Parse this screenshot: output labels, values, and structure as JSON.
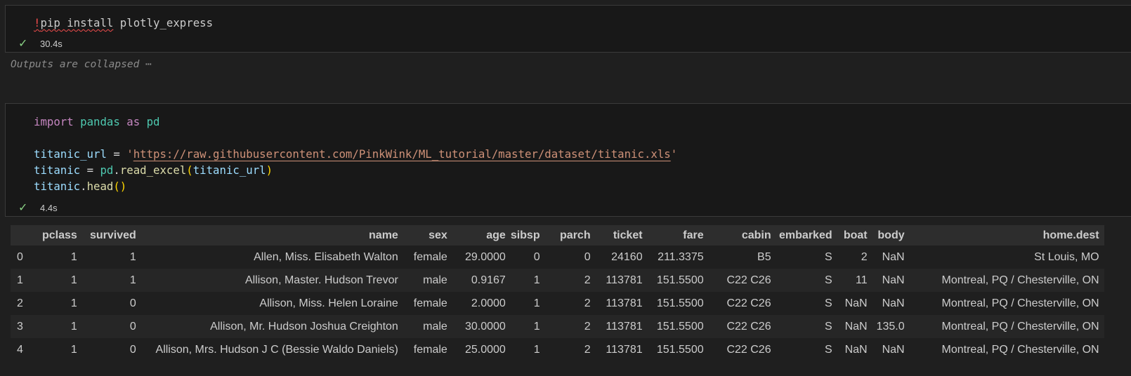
{
  "cell1": {
    "code": [
      [
        {
          "t": "!",
          "c": "#f14c4c",
          "sq": true
        },
        {
          "t": "pip install",
          "c": "#cccccc",
          "sq": true
        },
        {
          "t": " plotly_express",
          "c": "#cccccc"
        }
      ]
    ],
    "status": {
      "icon": "check-icon",
      "duration": "30.4s"
    }
  },
  "collapsed_label": "Outputs are collapsed ⋯",
  "cell2": {
    "code": [
      [
        {
          "t": "import",
          "c": "#c586c0"
        },
        {
          "t": " ",
          "c": "#cccccc"
        },
        {
          "t": "pandas",
          "c": "#4ec9b0"
        },
        {
          "t": " ",
          "c": "#cccccc"
        },
        {
          "t": "as",
          "c": "#c586c0"
        },
        {
          "t": " ",
          "c": "#cccccc"
        },
        {
          "t": "pd",
          "c": "#4ec9b0"
        }
      ],
      [],
      [
        {
          "t": "titanic_url",
          "c": "#9cdcfe"
        },
        {
          "t": " = ",
          "c": "#d4d4d4"
        },
        {
          "t": "'",
          "c": "#ce9178"
        },
        {
          "t": "https://raw.githubusercontent.com/PinkWink/ML_tutorial/master/dataset/titanic.xls",
          "c": "#ce9178",
          "u": true
        },
        {
          "t": "'",
          "c": "#ce9178"
        }
      ],
      [
        {
          "t": "titanic",
          "c": "#9cdcfe"
        },
        {
          "t": " = ",
          "c": "#d4d4d4"
        },
        {
          "t": "pd",
          "c": "#4ec9b0"
        },
        {
          "t": ".",
          "c": "#d4d4d4"
        },
        {
          "t": "read_excel",
          "c": "#dcdcaa"
        },
        {
          "t": "(",
          "c": "#ffd700"
        },
        {
          "t": "titanic_url",
          "c": "#9cdcfe"
        },
        {
          "t": ")",
          "c": "#ffd700"
        }
      ],
      [
        {
          "t": "titanic",
          "c": "#9cdcfe"
        },
        {
          "t": ".",
          "c": "#d4d4d4"
        },
        {
          "t": "head",
          "c": "#dcdcaa"
        },
        {
          "t": "()",
          "c": "#ffd700"
        }
      ]
    ],
    "status": {
      "icon": "check-icon",
      "duration": "4.4s"
    }
  },
  "table": {
    "columns": [
      "",
      "pclass",
      "survived",
      "name",
      "sex",
      "age",
      "sibsp",
      "parch",
      "ticket",
      "fare",
      "cabin",
      "embarked",
      "boat",
      "body",
      "home.dest"
    ],
    "rows": [
      [
        "0",
        "1",
        "1",
        "Allen, Miss. Elisabeth Walton",
        "female",
        "29.0000",
        "0",
        "0",
        "24160",
        "211.3375",
        "B5",
        "S",
        "2",
        "NaN",
        "St Louis, MO"
      ],
      [
        "1",
        "1",
        "1",
        "Allison, Master. Hudson Trevor",
        "male",
        "0.9167",
        "1",
        "2",
        "113781",
        "151.5500",
        "C22 C26",
        "S",
        "11",
        "NaN",
        "Montreal, PQ / Chesterville, ON"
      ],
      [
        "2",
        "1",
        "0",
        "Allison, Miss. Helen Loraine",
        "female",
        "2.0000",
        "1",
        "2",
        "113781",
        "151.5500",
        "C22 C26",
        "S",
        "NaN",
        "NaN",
        "Montreal, PQ / Chesterville, ON"
      ],
      [
        "3",
        "1",
        "0",
        "Allison, Mr. Hudson Joshua Creighton",
        "male",
        "30.0000",
        "1",
        "2",
        "113781",
        "151.5500",
        "C22 C26",
        "S",
        "NaN",
        "135.0",
        "Montreal, PQ / Chesterville, ON"
      ],
      [
        "4",
        "1",
        "0",
        "Allison, Mrs. Hudson J C (Bessie Waldo Daniels)",
        "female",
        "25.0000",
        "1",
        "2",
        "113781",
        "151.5500",
        "C22 C26",
        "S",
        "NaN",
        "NaN",
        "Montreal, PQ / Chesterville, ON"
      ]
    ]
  }
}
